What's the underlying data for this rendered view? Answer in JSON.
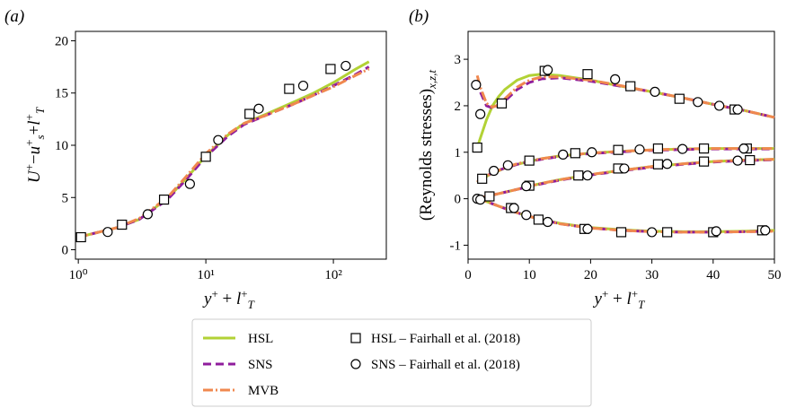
{
  "chart_data": [
    {
      "type": "line",
      "label": "(a)",
      "xscale": "log",
      "xlabel": [
        [
          "y",
          "i"
        ],
        [
          "+",
          "sup"
        ],
        [
          " + ",
          "r"
        ],
        [
          "l",
          "i"
        ],
        [
          "+",
          "sup"
        ],
        [
          "T",
          "sub"
        ]
      ],
      "ylabel": [
        [
          "U",
          "i"
        ],
        [
          "+",
          "sup"
        ],
        [
          "−",
          "r"
        ],
        [
          "u",
          "i"
        ],
        [
          "+",
          "sup"
        ],
        [
          "s",
          "sub"
        ],
        [
          "+",
          "r"
        ],
        [
          "l",
          "i"
        ],
        [
          "+",
          "sup"
        ],
        [
          "T",
          "sub"
        ]
      ],
      "xlim": [
        0.95,
        260
      ],
      "ylim": [
        -0.9,
        20.9
      ],
      "xticks": [
        {
          "value": 1,
          "label": "10⁰"
        },
        {
          "value": 10,
          "label": "10¹"
        },
        {
          "value": 100,
          "label": "10²"
        }
      ],
      "yticks": [
        0,
        5,
        10,
        15,
        20
      ],
      "x": [
        1,
        2,
        3,
        5,
        7,
        10,
        15,
        20,
        30,
        50,
        70,
        100,
        150,
        190
      ],
      "series": [
        {
          "name": "HSL",
          "color": "#b2d235",
          "style": "solid",
          "values": [
            1.2,
            2.1,
            2.9,
            4.9,
            6.8,
            9.0,
            11.0,
            12.1,
            13.0,
            14.2,
            15.0,
            16.0,
            17.3,
            18.0
          ]
        },
        {
          "name": "SNS",
          "color": "#8f1d9c",
          "style": "dashed",
          "values": [
            1.2,
            2.1,
            2.9,
            4.8,
            6.7,
            8.9,
            10.9,
            12.0,
            12.9,
            14.0,
            14.8,
            15.7,
            16.8,
            17.5
          ]
        },
        {
          "name": "MVB",
          "color": "#f0884f",
          "style": "dashdot",
          "values": [
            1.2,
            2.1,
            3.0,
            5.0,
            7.0,
            9.2,
            11.1,
            12.1,
            12.9,
            14.0,
            14.8,
            15.6,
            16.7,
            17.3
          ]
        }
      ],
      "markers": [
        {
          "name": "HSL – Fairhall et al. (2018)",
          "marker": "square",
          "x": [
            1.05,
            2.2,
            4.7,
            10,
            22,
            45,
            95
          ],
          "values": [
            1.2,
            2.4,
            4.8,
            8.9,
            13.0,
            15.4,
            17.3
          ]
        },
        {
          "name": "SNS – Fairhall et al. (2018)",
          "marker": "circle",
          "x": [
            1.7,
            3.5,
            7.5,
            12.5,
            26,
            58,
            125
          ],
          "values": [
            1.7,
            3.4,
            6.3,
            10.5,
            13.5,
            15.7,
            17.6
          ]
        }
      ]
    },
    {
      "type": "line",
      "label": "(b)",
      "xlabel": [
        [
          "y",
          "i"
        ],
        [
          "+",
          "sup"
        ],
        [
          " + ",
          "r"
        ],
        [
          "l",
          "i"
        ],
        [
          "+",
          "sup"
        ],
        [
          "T",
          "sub"
        ]
      ],
      "ylabel": [
        [
          "(Reynolds stresses)",
          "r"
        ],
        [
          "x,z,t",
          "sub"
        ]
      ],
      "xlim": [
        0,
        50
      ],
      "ylim": [
        -1.3,
        3.6
      ],
      "xticks": [
        0,
        10,
        20,
        30,
        40,
        50
      ],
      "yticks": [
        -1,
        0,
        1,
        2,
        3
      ],
      "x": [
        1.5,
        2,
        3,
        4,
        5,
        6,
        8,
        10,
        12,
        15,
        20,
        25,
        30,
        35,
        40,
        45,
        50
      ],
      "series": [
        {
          "color": "#b2d235",
          "style": "solid",
          "values": [
            [
              1.1,
              1.3,
              1.7,
              2.0,
              2.2,
              2.35,
              2.55,
              2.65,
              2.68,
              2.65,
              2.55,
              2.42,
              2.3,
              2.17,
              2.03,
              1.9,
              1.75
            ],
            [
              0.35,
              0.4,
              0.48,
              0.55,
              0.6,
              0.66,
              0.74,
              0.8,
              0.86,
              0.92,
              0.98,
              1.02,
              1.05,
              1.07,
              1.08,
              1.08,
              1.08
            ],
            [
              0.0,
              0.02,
              0.05,
              0.08,
              0.11,
              0.14,
              0.2,
              0.27,
              0.33,
              0.41,
              0.52,
              0.61,
              0.69,
              0.75,
              0.8,
              0.83,
              0.85
            ],
            [
              0.0,
              -0.02,
              -0.06,
              -0.11,
              -0.16,
              -0.2,
              -0.3,
              -0.38,
              -0.45,
              -0.53,
              -0.62,
              -0.67,
              -0.7,
              -0.71,
              -0.71,
              -0.7,
              -0.68
            ]
          ]
        },
        {
          "color": "#8f1d9c",
          "style": "dashed",
          "values": [
            [
              2.55,
              2.3,
              2.0,
              1.95,
              2.0,
              2.1,
              2.35,
              2.5,
              2.58,
              2.6,
              2.53,
              2.42,
              2.3,
              2.17,
              2.03,
              1.9,
              1.75
            ],
            [
              0.36,
              0.41,
              0.49,
              0.56,
              0.61,
              0.66,
              0.74,
              0.8,
              0.85,
              0.91,
              0.97,
              1.01,
              1.04,
              1.06,
              1.07,
              1.07,
              1.07
            ],
            [
              0.0,
              0.02,
              0.05,
              0.08,
              0.11,
              0.14,
              0.2,
              0.26,
              0.32,
              0.4,
              0.51,
              0.6,
              0.68,
              0.74,
              0.79,
              0.82,
              0.84
            ],
            [
              0.0,
              -0.02,
              -0.06,
              -0.11,
              -0.16,
              -0.21,
              -0.3,
              -0.38,
              -0.45,
              -0.54,
              -0.63,
              -0.68,
              -0.71,
              -0.72,
              -0.72,
              -0.71,
              -0.7
            ]
          ]
        },
        {
          "color": "#f0884f",
          "style": "dashdot",
          "values": [
            [
              2.65,
              2.4,
              2.05,
              1.97,
              2.02,
              2.15,
              2.4,
              2.55,
              2.62,
              2.62,
              2.55,
              2.43,
              2.3,
              2.17,
              2.03,
              1.9,
              1.75
            ],
            [
              0.36,
              0.41,
              0.49,
              0.56,
              0.61,
              0.67,
              0.75,
              0.81,
              0.86,
              0.92,
              0.98,
              1.02,
              1.05,
              1.07,
              1.08,
              1.08,
              1.08
            ],
            [
              0.0,
              0.02,
              0.05,
              0.08,
              0.11,
              0.14,
              0.2,
              0.27,
              0.33,
              0.41,
              0.52,
              0.61,
              0.69,
              0.75,
              0.8,
              0.83,
              0.85
            ],
            [
              0.0,
              -0.02,
              -0.06,
              -0.11,
              -0.16,
              -0.21,
              -0.3,
              -0.38,
              -0.45,
              -0.54,
              -0.63,
              -0.68,
              -0.71,
              -0.72,
              -0.72,
              -0.71,
              -0.7
            ]
          ]
        }
      ],
      "markers": [
        {
          "marker": "square",
          "x": [
            [
              1.5,
              5.5,
              12.5,
              19.5,
              26.5,
              34.5,
              43.5
            ],
            [
              2.3,
              10,
              17.5,
              24.5,
              31,
              38.5,
              45.5
            ],
            [
              3.5,
              10,
              18,
              24.5,
              31,
              38.5,
              46
            ],
            [
              7,
              11.5,
              19,
              25,
              32.5,
              40,
              48
            ]
          ],
          "values": [
            [
              1.1,
              2.05,
              2.75,
              2.68,
              2.42,
              2.15,
              1.92
            ],
            [
              0.43,
              0.82,
              0.98,
              1.05,
              1.08,
              1.08,
              1.08
            ],
            [
              0.05,
              0.28,
              0.5,
              0.65,
              0.74,
              0.8,
              0.83
            ],
            [
              -0.2,
              -0.45,
              -0.65,
              -0.72,
              -0.72,
              -0.72,
              -0.68
            ]
          ]
        },
        {
          "marker": "circle",
          "x": [
            [
              1.3,
              2.0,
              13.0,
              24,
              30.5,
              37.5,
              41,
              44
            ],
            [
              4.2,
              6.5,
              15.5,
              20.2,
              28,
              35,
              45
            ],
            [
              1.5,
              9.5,
              19.5,
              25.5,
              32.5,
              44
            ],
            [
              2,
              7.5,
              9.5,
              13,
              19.5,
              30,
              40.5,
              48.5
            ]
          ],
          "values": [
            [
              2.45,
              1.82,
              2.77,
              2.57,
              2.3,
              2.08,
              2.0,
              1.92
            ],
            [
              0.6,
              0.72,
              0.95,
              1.0,
              1.06,
              1.07,
              1.08
            ],
            [
              0.0,
              0.27,
              0.5,
              0.65,
              0.75,
              0.82
            ],
            [
              -0.02,
              -0.2,
              -0.35,
              -0.5,
              -0.65,
              -0.72,
              -0.7,
              -0.68
            ]
          ]
        }
      ]
    }
  ]
}
